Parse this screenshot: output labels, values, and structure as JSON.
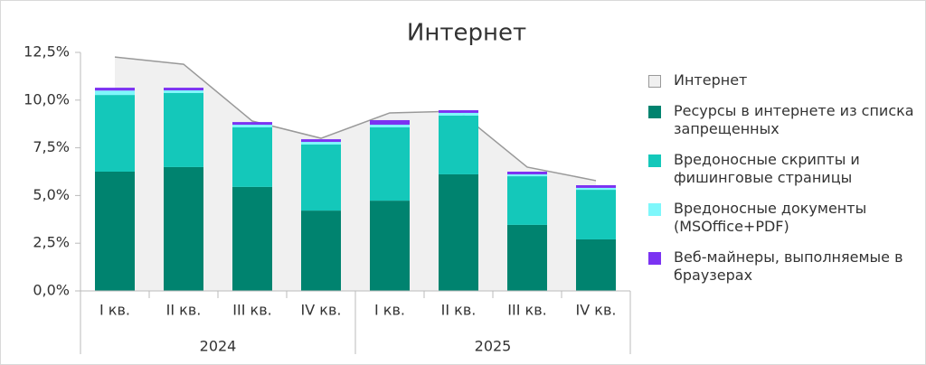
{
  "chart_data": {
    "type": "bar",
    "title": "Интернет",
    "categories": [
      "I кв.",
      "II кв.",
      "III кв.",
      "IV кв.",
      "I кв.",
      "II кв.",
      "III кв.",
      "IV кв."
    ],
    "x_groups": [
      "2024",
      "2025"
    ],
    "series": [
      {
        "name": "Интернет",
        "color": "#f0f0f0",
        "type": "area",
        "values": [
          12.26,
          11.88,
          8.9,
          8.0,
          9.33,
          9.42,
          6.49,
          5.78
        ]
      },
      {
        "name": "Ресурсы в интернете из списка запрещенных",
        "color": "#00836f",
        "values": [
          6.25,
          6.49,
          5.45,
          4.21,
          4.73,
          6.11,
          3.46,
          2.7
        ]
      },
      {
        "name": "Вредоносные скрипты и фишинговые страницы",
        "color": "#14c8ba",
        "values": [
          4.02,
          3.88,
          3.12,
          3.46,
          3.84,
          3.08,
          2.55,
          2.6
        ]
      },
      {
        "name": "Вредоносные документы (MSOffice+PDF)",
        "color": "#7ef7fb",
        "values": [
          0.23,
          0.14,
          0.14,
          0.14,
          0.14,
          0.14,
          0.1,
          0.1
        ]
      },
      {
        "name": "Веб-майнеры, выполняемые в браузерах",
        "color": "#7b33f2",
        "values": [
          0.15,
          0.14,
          0.14,
          0.14,
          0.24,
          0.14,
          0.14,
          0.14
        ]
      }
    ],
    "ylim": [
      0,
      12.5
    ],
    "yticks": [
      {
        "value": 0,
        "label": "0,0%"
      },
      {
        "value": 2.5,
        "label": "2,5%"
      },
      {
        "value": 5,
        "label": "5,0%"
      },
      {
        "value": 7.5,
        "label": "7,5%"
      },
      {
        "value": 10,
        "label": "10,0%"
      },
      {
        "value": 12.5,
        "label": "12,5%"
      }
    ],
    "grid": false
  }
}
